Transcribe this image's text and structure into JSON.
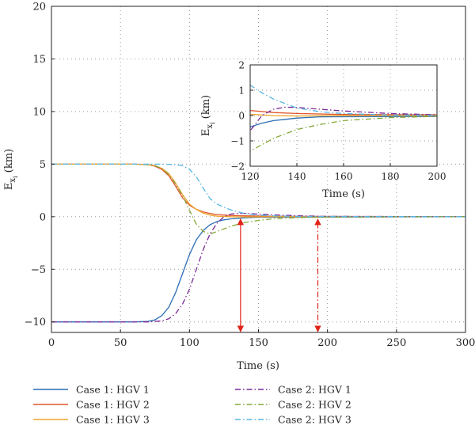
{
  "chart_data": [
    {
      "type": "line",
      "xlabel": "Time (s)",
      "ylabel_main": "E",
      "ylabel_sub": "x",
      "ylabel_subsub": "i",
      "ylabel_unit": " (km)",
      "xlim": [
        0,
        300
      ],
      "ylim": [
        -11,
        20
      ],
      "xticks": [
        0,
        50,
        100,
        150,
        200,
        250,
        300
      ],
      "yticks": [
        -10,
        -5,
        0,
        5,
        10,
        15,
        20
      ],
      "grid": true,
      "legend_position": "bottom",
      "series": [
        {
          "name": "Case 1: HGV 1",
          "color": "#2a6db5",
          "dash": "solid",
          "x": [
            0,
            60,
            70,
            75,
            80,
            85,
            90,
            95,
            100,
            105,
            110,
            115,
            120,
            125,
            130,
            135,
            140,
            150,
            300
          ],
          "y": [
            -10,
            -10,
            -9.95,
            -9.8,
            -9.4,
            -8.6,
            -7.2,
            -5.4,
            -3.6,
            -2.2,
            -1.3,
            -0.75,
            -0.45,
            -0.3,
            -0.2,
            -0.15,
            -0.1,
            -0.05,
            0
          ]
        },
        {
          "name": "Case 1: HGV 2",
          "color": "#e0552c",
          "dash": "solid",
          "x": [
            0,
            60,
            70,
            75,
            80,
            85,
            90,
            95,
            100,
            105,
            110,
            115,
            120,
            130,
            140,
            160,
            300
          ],
          "y": [
            5,
            5,
            4.95,
            4.8,
            4.5,
            3.9,
            2.9,
            1.8,
            1.1,
            0.7,
            0.45,
            0.3,
            0.2,
            0.12,
            0.08,
            0.04,
            0
          ]
        },
        {
          "name": "Case 1: HGV 3",
          "color": "#eea52b",
          "dash": "solid",
          "x": [
            0,
            60,
            70,
            75,
            80,
            85,
            90,
            95,
            100,
            105,
            110,
            115,
            120,
            130,
            140,
            160,
            300
          ],
          "y": [
            5,
            5,
            4.95,
            4.85,
            4.6,
            4.1,
            3.2,
            2.1,
            1.2,
            0.7,
            0.35,
            0.15,
            0.05,
            0,
            -0.02,
            0,
            0
          ]
        },
        {
          "name": "Case 2: HGV 1",
          "color": "#7c2a96",
          "dash": "dashdot",
          "x": [
            0,
            70,
            80,
            85,
            90,
            95,
            100,
            105,
            110,
            115,
            120,
            125,
            130,
            135,
            140,
            150,
            160,
            180,
            200,
            300
          ],
          "y": [
            -10,
            -10,
            -9.9,
            -9.7,
            -9.2,
            -8.3,
            -6.9,
            -5.0,
            -3.1,
            -1.6,
            -0.6,
            0.0,
            0.25,
            0.33,
            0.32,
            0.25,
            0.18,
            0.08,
            0.03,
            0
          ]
        },
        {
          "name": "Case 2: HGV 2",
          "color": "#86a83a",
          "dash": "dashdot",
          "x": [
            0,
            60,
            70,
            75,
            80,
            85,
            90,
            95,
            100,
            105,
            110,
            115,
            120,
            130,
            140,
            150,
            160,
            180,
            200,
            300
          ],
          "y": [
            5,
            5,
            4.95,
            4.85,
            4.6,
            4.0,
            3.1,
            2.0,
            0.6,
            -0.7,
            -1.4,
            -1.65,
            -1.4,
            -0.9,
            -0.55,
            -0.35,
            -0.2,
            -0.08,
            -0.03,
            0
          ]
        },
        {
          "name": "Case 2: HGV 3",
          "color": "#57b7e3",
          "dash": "dashdot",
          "x": [
            0,
            80,
            90,
            95,
            100,
            105,
            110,
            115,
            120,
            125,
            130,
            140,
            150,
            160,
            180,
            300
          ],
          "y": [
            5,
            5,
            4.95,
            4.85,
            4.5,
            3.8,
            2.7,
            1.7,
            1.2,
            0.9,
            0.65,
            0.3,
            0.15,
            0.08,
            0.02,
            0
          ]
        }
      ],
      "annotations": [
        {
          "type": "double-arrow",
          "x": 137,
          "y_from": -11,
          "y_to": 0,
          "style": "solid",
          "color": "#e2231a"
        },
        {
          "type": "double-arrow",
          "x": 193,
          "y_from": -11,
          "y_to": 0,
          "style": "dashdot",
          "color": "#e2231a"
        }
      ]
    },
    {
      "type": "line",
      "role": "inset",
      "xlabel": "Time (s)",
      "ylabel_main": "E",
      "ylabel_sub": "x",
      "ylabel_subsub": "i",
      "ylabel_unit": " (km)",
      "xlim": [
        120,
        200
      ],
      "ylim": [
        -2,
        2
      ],
      "xticks": [
        120,
        140,
        160,
        180,
        200
      ],
      "yticks": [
        -2,
        -1,
        0,
        1,
        2
      ],
      "grid": true
    }
  ],
  "legend": {
    "items": [
      {
        "label": "Case 1: HGV 1",
        "color": "#2a6db5",
        "dash": "solid",
        "column": 0
      },
      {
        "label": "Case 1: HGV 2",
        "color": "#e0552c",
        "dash": "solid",
        "column": 0
      },
      {
        "label": "Case 1: HGV 3",
        "color": "#eea52b",
        "dash": "solid",
        "column": 0
      },
      {
        "label": "Case 2: HGV 1",
        "color": "#7c2a96",
        "dash": "dashdot",
        "column": 1
      },
      {
        "label": "Case 2: HGV 2",
        "color": "#86a83a",
        "dash": "dashdot",
        "column": 1
      },
      {
        "label": "Case 2: HGV 3",
        "color": "#57b7e3",
        "dash": "dashdot",
        "column": 1
      }
    ]
  }
}
